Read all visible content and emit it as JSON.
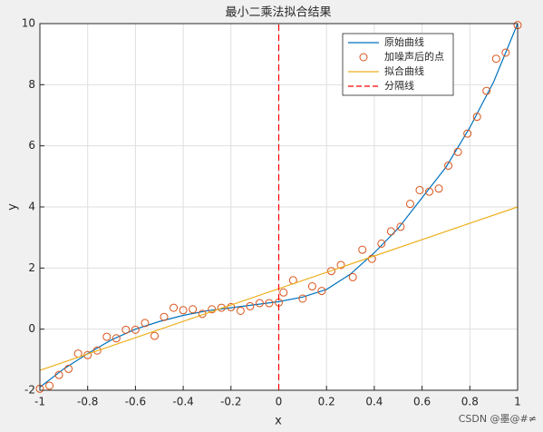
{
  "chart_data": {
    "type": "line",
    "title": "最小二乘法拟合结果",
    "x_label": "x",
    "y_label": "y",
    "xlim": [
      -1,
      1
    ],
    "ylim": [
      -2,
      10
    ],
    "xticks": [
      -1,
      -0.8,
      -0.6,
      -0.4,
      -0.2,
      0,
      0.2,
      0.4,
      0.6,
      0.8,
      1
    ],
    "yticks": [
      -2,
      0,
      2,
      4,
      6,
      8,
      10
    ],
    "grid": true,
    "legend": "northeast",
    "watermark": "CSDN @墨@#≠",
    "series": [
      {
        "name": "原始曲线",
        "color": "#0072bd",
        "mode": "line",
        "x": [
          -1,
          -0.9,
          -0.8,
          -0.7,
          -0.6,
          -0.5,
          -0.4,
          -0.3,
          -0.2,
          -0.1,
          0,
          0.1,
          0.2,
          0.3,
          0.4,
          0.5,
          0.6,
          0.7,
          0.8,
          0.9,
          1
        ],
        "values": [
          -1.9,
          -1.3,
          -0.8,
          -0.35,
          0,
          0.25,
          0.45,
          0.6,
          0.7,
          0.8,
          0.9,
          1.05,
          1.3,
          1.8,
          2.5,
          3.3,
          4.3,
          5.3,
          6.6,
          8.1,
          10
        ]
      },
      {
        "name": "加噪声后的点",
        "color": "#d95319",
        "mode": "markers",
        "x": [
          -1,
          -0.96,
          -0.92,
          -0.88,
          -0.84,
          -0.8,
          -0.76,
          -0.72,
          -0.68,
          -0.64,
          -0.6,
          -0.56,
          -0.52,
          -0.48,
          -0.44,
          -0.4,
          -0.36,
          -0.32,
          -0.28,
          -0.24,
          -0.2,
          -0.16,
          -0.12,
          -0.08,
          -0.04,
          0,
          0.02,
          0.06,
          0.1,
          0.14,
          0.18,
          0.22,
          0.26,
          0.31,
          0.35,
          0.39,
          0.43,
          0.47,
          0.51,
          0.55,
          0.59,
          0.63,
          0.67,
          0.71,
          0.75,
          0.79,
          0.83,
          0.87,
          0.91,
          0.95,
          1
        ],
        "values": [
          -1.95,
          -1.85,
          -1.5,
          -1.3,
          -0.8,
          -0.85,
          -0.7,
          -0.25,
          -0.3,
          -0.02,
          -0.02,
          0.2,
          -0.22,
          0.4,
          0.7,
          0.62,
          0.65,
          0.5,
          0.65,
          0.7,
          0.72,
          0.6,
          0.75,
          0.85,
          0.85,
          0.87,
          1.2,
          1.6,
          1,
          1.4,
          1.25,
          1.9,
          2.1,
          1.7,
          2.6,
          2.3,
          2.8,
          3.2,
          3.35,
          4.1,
          4.55,
          4.5,
          4.6,
          5.35,
          5.8,
          6.4,
          6.95,
          7.8,
          8.85,
          9.05,
          9.95
        ]
      },
      {
        "name": "拟合曲线",
        "color": "#edb120",
        "mode": "line",
        "x": [
          -1,
          1
        ],
        "values": [
          -1.35,
          4
        ]
      },
      {
        "name": "分隔线",
        "color": "#ff0000",
        "mode": "line",
        "dash": true,
        "x": [
          0,
          0
        ],
        "values": [
          -2,
          10
        ]
      }
    ]
  }
}
